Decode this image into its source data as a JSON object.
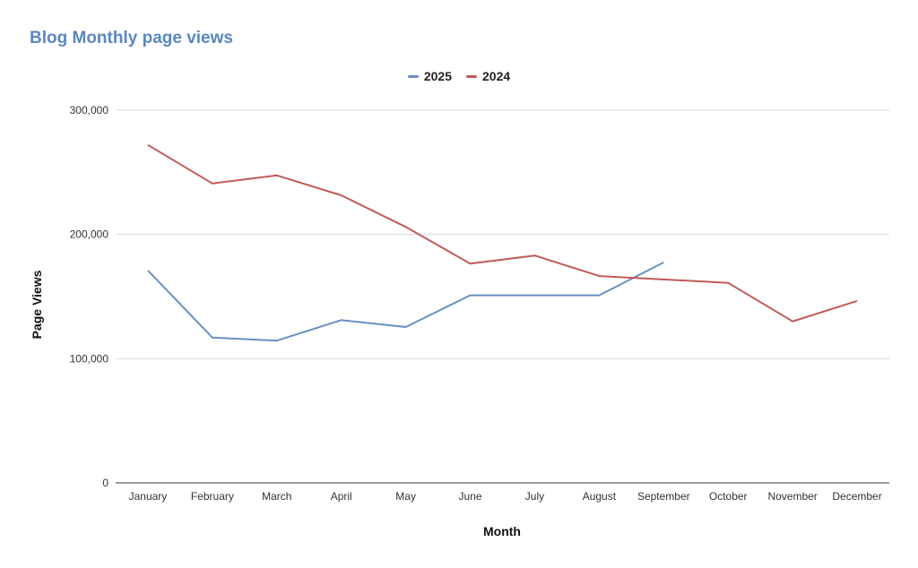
{
  "chart_data": {
    "type": "line",
    "title": "Blog Monthly page views",
    "xlabel": "Month",
    "ylabel": "Page Views",
    "categories": [
      "January",
      "February",
      "March",
      "April",
      "May",
      "June",
      "July",
      "August",
      "September",
      "October",
      "November",
      "December"
    ],
    "series": [
      {
        "name": "2025",
        "color": "#6a8fc2",
        "values": [
          171000,
          117000,
          114500,
          131000,
          125500,
          151000,
          151000,
          151000,
          177500,
          null,
          null,
          null
        ]
      },
      {
        "name": "2024",
        "color": "#c05a5a",
        "values": [
          272000,
          241000,
          247500,
          231500,
          206000,
          176500,
          183000,
          166500,
          null,
          161000,
          130000,
          146500
        ]
      }
    ],
    "ylim": [
      0,
      300000
    ],
    "yticks": [
      0,
      100000,
      200000,
      300000
    ],
    "ytick_labels": [
      "0",
      "100,000",
      "200,000",
      "300,000"
    ],
    "grid": true,
    "legend_position": "top-center"
  }
}
